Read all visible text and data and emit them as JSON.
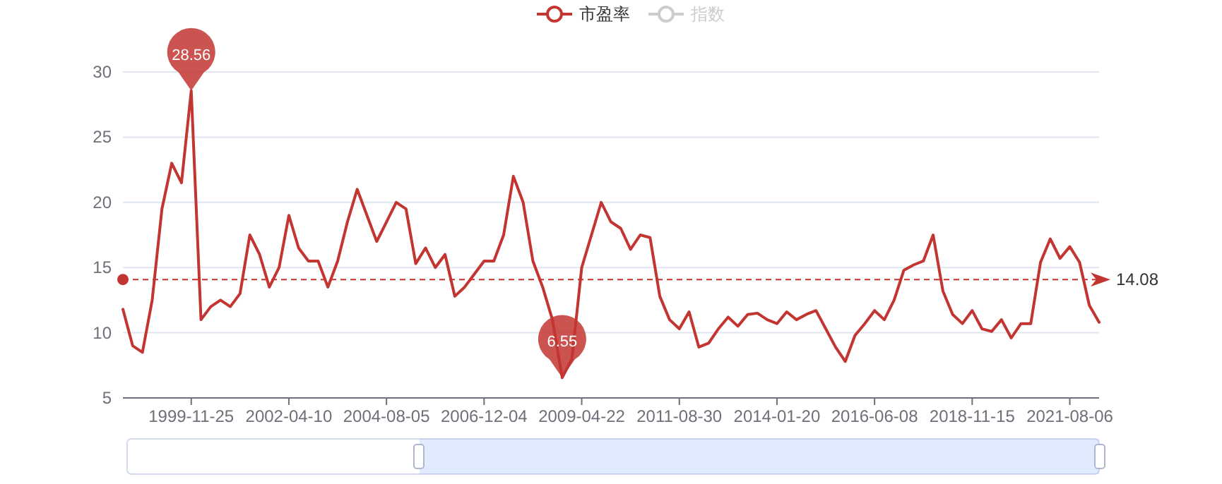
{
  "chart_data": {
    "type": "line",
    "categories": [
      null,
      null,
      null,
      null,
      null,
      null,
      null,
      "1999-11-25",
      null,
      null,
      null,
      null,
      null,
      null,
      null,
      null,
      null,
      "2002-04-10",
      null,
      null,
      null,
      null,
      null,
      null,
      null,
      null,
      null,
      "2004-08-05",
      null,
      null,
      null,
      null,
      null,
      null,
      null,
      null,
      null,
      "2006-12-04",
      null,
      null,
      null,
      null,
      null,
      null,
      null,
      null,
      null,
      "2009-04-22",
      null,
      null,
      null,
      null,
      null,
      null,
      null,
      null,
      null,
      "2011-08-30",
      null,
      null,
      null,
      null,
      null,
      null,
      null,
      null,
      null,
      "2014-01-20",
      null,
      null,
      null,
      null,
      null,
      null,
      null,
      null,
      null,
      "2016-06-08",
      null,
      null,
      null,
      null,
      null,
      null,
      null,
      null,
      null,
      "2018-11-15",
      null,
      null,
      null,
      null,
      null,
      null,
      null,
      null,
      null,
      "2021-08-06",
      null,
      null,
      null
    ],
    "series": [
      {
        "name": "市盈率",
        "color": "#c23531",
        "values": [
          11.8,
          9.0,
          8.5,
          12.5,
          19.5,
          23,
          21.5,
          28.56,
          11,
          12.0,
          12.5,
          12.0,
          13.0,
          17.5,
          16,
          13.5,
          15,
          19,
          16.5,
          15.5,
          15.5,
          13.5,
          15.5,
          18.5,
          21,
          19,
          17,
          18.5,
          20,
          19.5,
          15.3,
          16.5,
          15,
          16,
          12.8,
          13.5,
          14.5,
          15.5,
          15.5,
          17.5,
          22,
          20,
          15.5,
          13.5,
          11,
          6.55,
          8.0,
          15,
          17.5,
          20,
          18.5,
          18,
          16.4,
          17.5,
          17.3,
          12.8,
          11,
          10.3,
          11.6,
          8.9,
          9.2,
          10.3,
          11.2,
          10.5,
          11.4,
          11.5,
          11,
          10.7,
          11.6,
          11,
          11.4,
          11.7,
          10.3,
          8.9,
          7.8,
          9.8,
          10.7,
          11.7,
          11,
          12.5,
          14.8,
          15.2,
          15.5,
          17.5,
          13.2,
          11.4,
          10.7,
          11.7,
          10.3,
          10.1,
          11,
          9.6,
          10.7,
          10.7,
          15.4,
          17.2,
          15.7,
          16.6,
          15.4,
          12.1,
          10.8
        ]
      },
      {
        "name": "指数",
        "color": "#cccccc",
        "values": [
          null,
          null,
          null,
          null,
          null,
          null,
          null,
          null,
          null,
          null,
          null,
          null,
          null,
          null,
          null,
          null,
          null,
          null,
          null,
          null,
          null,
          null,
          null,
          null,
          null,
          null,
          null,
          null,
          null,
          null,
          null,
          null,
          null,
          null,
          null,
          null,
          null,
          null,
          null,
          null,
          null,
          null,
          null,
          null,
          null,
          null,
          null,
          null,
          null,
          null,
          null,
          null,
          null,
          null,
          null,
          null,
          null,
          null,
          null,
          null,
          null,
          null,
          null,
          null,
          null,
          null,
          null,
          null,
          null,
          null,
          null,
          null,
          null,
          null,
          null,
          null,
          null,
          null,
          null,
          null,
          null,
          null,
          null,
          null,
          null,
          null,
          null,
          null,
          null,
          null,
          null,
          null,
          null,
          null,
          null,
          null,
          null,
          null,
          null,
          null,
          null
        ]
      }
    ],
    "ylim": [
      5,
      30
    ],
    "yticks": [
      5,
      10,
      15,
      20,
      25,
      30
    ],
    "grid": "y",
    "legend": "top",
    "ref_lines": [
      {
        "axis": "y",
        "value": 14.08,
        "label": "14.08",
        "line_style": "dashed"
      }
    ],
    "annotations": [
      {
        "text": "28.56",
        "y": 28.56
      },
      {
        "text": "6.55",
        "y": 6.55
      }
    ]
  }
}
